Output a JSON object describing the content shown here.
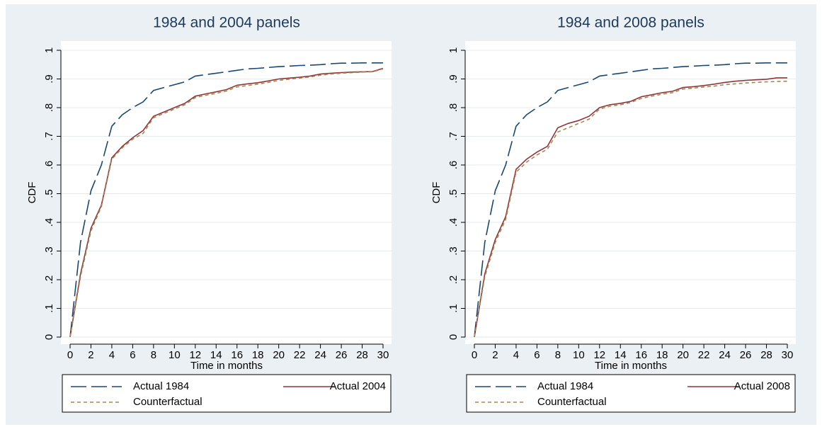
{
  "chart_data": [
    {
      "type": "line",
      "title": "1984 and 2004 panels",
      "x_label": "Time in months",
      "y_label": "CDF",
      "x": [
        0,
        1,
        2,
        3,
        4,
        5,
        6,
        7,
        8,
        9,
        10,
        11,
        12,
        13,
        14,
        15,
        16,
        17,
        18,
        19,
        20,
        21,
        22,
        23,
        24,
        25,
        26,
        27,
        28,
        29,
        30
      ],
      "series": [
        {
          "name": "Actual 1984",
          "color": "#1a476f",
          "line_style": "long-dash",
          "values": [
            0,
            0.33,
            0.51,
            0.6,
            0.735,
            0.775,
            0.8,
            0.82,
            0.86,
            0.87,
            0.88,
            0.89,
            0.91,
            0.915,
            0.92,
            0.925,
            0.93,
            0.935,
            0.937,
            0.94,
            0.943,
            0.945,
            0.947,
            0.948,
            0.95,
            0.953,
            0.955,
            0.955,
            0.956,
            0.956,
            0.956
          ]
        },
        {
          "name": "Actual 2004",
          "color": "#90353b",
          "line_style": "solid",
          "values": [
            0,
            0.22,
            0.38,
            0.46,
            0.625,
            0.665,
            0.695,
            0.72,
            0.77,
            0.785,
            0.8,
            0.815,
            0.84,
            0.848,
            0.855,
            0.863,
            0.878,
            0.883,
            0.887,
            0.893,
            0.9,
            0.903,
            0.906,
            0.91,
            0.917,
            0.92,
            0.922,
            0.924,
            0.925,
            0.926,
            0.937
          ]
        },
        {
          "name": "Counterfactual",
          "color": "#a08a52",
          "line_style": "short-dash",
          "values": [
            0,
            0.21,
            0.37,
            0.455,
            0.62,
            0.66,
            0.69,
            0.71,
            0.765,
            0.78,
            0.795,
            0.81,
            0.835,
            0.843,
            0.85,
            0.858,
            0.872,
            0.877,
            0.882,
            0.888,
            0.895,
            0.899,
            0.903,
            0.907,
            0.913,
            0.917,
            0.92,
            0.922,
            0.924,
            0.925,
            0.935
          ]
        }
      ],
      "xlim": [
        0,
        30
      ],
      "xticks": [
        0,
        2,
        4,
        6,
        8,
        10,
        12,
        14,
        16,
        18,
        20,
        22,
        24,
        26,
        28,
        30
      ],
      "ylim": [
        0,
        1
      ],
      "yticks": [
        0,
        {
          "value": 0.1,
          "label": ".1"
        },
        {
          "value": 0.2,
          "label": ".2"
        },
        {
          "value": 0.3,
          "label": ".3"
        },
        {
          "value": 0.4,
          "label": ".4"
        },
        {
          "value": 0.5,
          "label": ".5"
        },
        {
          "value": 0.6,
          "label": ".6"
        },
        {
          "value": 0.7,
          "label": ".7"
        },
        {
          "value": 0.8,
          "label": ".8"
        },
        {
          "value": 0.9,
          "label": ".9"
        },
        1
      ],
      "grid": true,
      "legend": "bottom"
    },
    {
      "type": "line",
      "title": "1984 and 2008 panels",
      "x_label": "Time in months",
      "y_label": "CDF",
      "x": [
        0,
        1,
        2,
        3,
        4,
        5,
        6,
        7,
        8,
        9,
        10,
        11,
        12,
        13,
        14,
        15,
        16,
        17,
        18,
        19,
        20,
        21,
        22,
        23,
        24,
        25,
        26,
        27,
        28,
        29,
        30
      ],
      "series": [
        {
          "name": "Actual 1984",
          "color": "#1a476f",
          "line_style": "long-dash",
          "values": [
            0,
            0.33,
            0.51,
            0.6,
            0.735,
            0.775,
            0.8,
            0.82,
            0.86,
            0.87,
            0.88,
            0.89,
            0.91,
            0.915,
            0.92,
            0.925,
            0.93,
            0.935,
            0.937,
            0.94,
            0.943,
            0.945,
            0.947,
            0.948,
            0.95,
            0.953,
            0.955,
            0.955,
            0.956,
            0.956,
            0.956
          ]
        },
        {
          "name": "Actual 2008",
          "color": "#90353b",
          "line_style": "solid",
          "values": [
            0,
            0.22,
            0.34,
            0.42,
            0.585,
            0.62,
            0.645,
            0.665,
            0.73,
            0.745,
            0.755,
            0.77,
            0.8,
            0.81,
            0.815,
            0.822,
            0.838,
            0.845,
            0.852,
            0.857,
            0.87,
            0.873,
            0.877,
            0.882,
            0.888,
            0.892,
            0.895,
            0.897,
            0.899,
            0.904,
            0.904
          ]
        },
        {
          "name": "Counterfactual",
          "color": "#a08a52",
          "line_style": "short-dash",
          "values": [
            0,
            0.21,
            0.33,
            0.41,
            0.575,
            0.61,
            0.635,
            0.655,
            0.715,
            0.73,
            0.745,
            0.76,
            0.795,
            0.805,
            0.81,
            0.818,
            0.832,
            0.84,
            0.847,
            0.852,
            0.865,
            0.868,
            0.872,
            0.875,
            0.88,
            0.883,
            0.886,
            0.888,
            0.89,
            0.891,
            0.892
          ]
        }
      ],
      "xlim": [
        0,
        30
      ],
      "xticks": [
        0,
        2,
        4,
        6,
        8,
        10,
        12,
        14,
        16,
        18,
        20,
        22,
        24,
        26,
        28,
        30
      ],
      "ylim": [
        0,
        1
      ],
      "yticks": [
        0,
        {
          "value": 0.1,
          "label": ".1"
        },
        {
          "value": 0.2,
          "label": ".2"
        },
        {
          "value": 0.3,
          "label": ".3"
        },
        {
          "value": 0.4,
          "label": ".4"
        },
        {
          "value": 0.5,
          "label": ".5"
        },
        {
          "value": 0.6,
          "label": ".6"
        },
        {
          "value": 0.7,
          "label": ".7"
        },
        {
          "value": 0.8,
          "label": ".8"
        },
        {
          "value": 0.9,
          "label": ".9"
        },
        1
      ],
      "grid": true,
      "legend": "bottom"
    }
  ]
}
